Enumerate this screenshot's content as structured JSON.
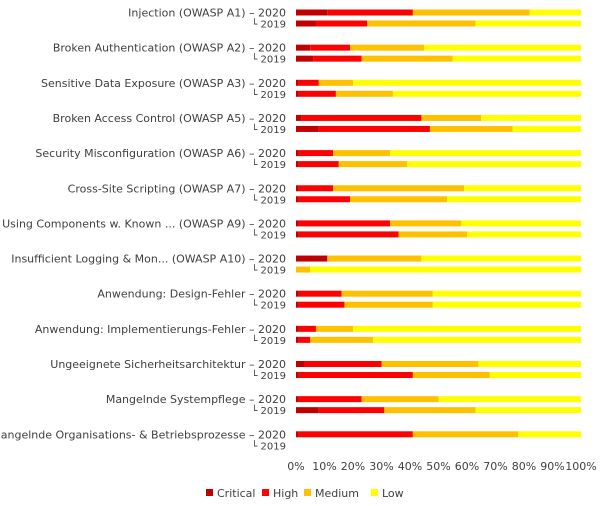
{
  "chart_data": {
    "type": "bar",
    "orientation": "horizontal",
    "stacked": "percent",
    "title": "",
    "xlabel": "",
    "ylabel": "",
    "xlim": [
      0,
      100
    ],
    "x_ticks": [
      "0%",
      "10%",
      "20%",
      "30%",
      "40%",
      "50%",
      "60%",
      "70%",
      "80%",
      "90%",
      "100%"
    ],
    "legend_position": "bottom",
    "grid": false,
    "series": [
      {
        "name": "Critical",
        "color": "#C00000"
      },
      {
        "name": "High",
        "color": "#FF0000"
      },
      {
        "name": "Medium",
        "color": "#FFC000"
      },
      {
        "name": "Low",
        "color": "#FFFF00"
      }
    ],
    "groups": [
      {
        "label": "Injection (OWASP A1)",
        "rows": [
          {
            "year": "2020",
            "values": [
              11,
              30,
              41,
              18
            ]
          },
          {
            "year": "2019",
            "values": [
              7,
              18,
              38,
              37
            ]
          }
        ]
      },
      {
        "label": "Broken Authentication (OWASP A2)",
        "rows": [
          {
            "year": "2020",
            "values": [
              5,
              14,
              26,
              55
            ]
          },
          {
            "year": "2019",
            "values": [
              6,
              17,
              32,
              45
            ]
          }
        ]
      },
      {
        "label": "Sensitive Data Exposure (OWASP A3)",
        "rows": [
          {
            "year": "2020",
            "values": [
              1,
              7,
              12,
              80
            ]
          },
          {
            "year": "2019",
            "values": [
              1,
              13,
              20,
              66
            ]
          }
        ]
      },
      {
        "label": "Broken Access Control (OWASP A5)",
        "rows": [
          {
            "year": "2020",
            "values": [
              2,
              42,
              21,
              35
            ]
          },
          {
            "year": "2019",
            "values": [
              8,
              39,
              29,
              24
            ]
          }
        ]
      },
      {
        "label": "Security Misconfiguration (OWASP A6)",
        "rows": [
          {
            "year": "2020",
            "values": [
              1,
              12,
              20,
              67
            ]
          },
          {
            "year": "2019",
            "values": [
              1,
              14,
              24,
              61
            ]
          }
        ]
      },
      {
        "label": "Cross-Site Scripting (OWASP A7)",
        "rows": [
          {
            "year": "2020",
            "values": [
              1,
              12,
              46,
              41
            ]
          },
          {
            "year": "2019",
            "values": [
              1,
              18,
              34,
              47
            ]
          }
        ]
      },
      {
        "label": "Using Components w. Known ... (OWASP A9)",
        "rows": [
          {
            "year": "2020",
            "values": [
              1,
              32,
              25,
              42
            ]
          },
          {
            "year": "2019",
            "values": [
              1,
              35,
              24,
              40
            ]
          }
        ]
      },
      {
        "label": "Insufficient Logging & Mon... (OWASP A10)",
        "rows": [
          {
            "year": "2020",
            "values": [
              11,
              0,
              33,
              56
            ]
          },
          {
            "year": "2019",
            "values": [
              0,
              0,
              5,
              95
            ]
          }
        ]
      },
      {
        "label": "Anwendung: Design-Fehler",
        "rows": [
          {
            "year": "2020",
            "values": [
              1,
              15,
              32,
              52
            ]
          },
          {
            "year": "2019",
            "values": [
              1,
              16,
              31,
              52
            ]
          }
        ]
      },
      {
        "label": "Anwendung: Implementierungs-Fehler",
        "rows": [
          {
            "year": "2020",
            "values": [
              1,
              6,
              13,
              80
            ]
          },
          {
            "year": "2019",
            "values": [
              1,
              4,
              22,
              73
            ]
          }
        ]
      },
      {
        "label": "Ungeeignete Sicherheitsarchitektur",
        "rows": [
          {
            "year": "2020",
            "values": [
              3,
              27,
              34,
              36
            ]
          },
          {
            "year": "2019",
            "values": [
              1,
              40,
              27,
              32
            ]
          }
        ]
      },
      {
        "label": "Mangelnde Systempflege",
        "rows": [
          {
            "year": "2020",
            "values": [
              1,
              22,
              27,
              50
            ]
          },
          {
            "year": "2019",
            "values": [
              8,
              23,
              32,
              37
            ]
          }
        ]
      },
      {
        "label": "Mangelnde Organisations- & Betriebsprozesse",
        "rows": [
          {
            "year": "2020",
            "values": [
              1,
              40,
              37,
              22
            ]
          },
          {
            "year": "2019",
            "values": [
              0,
              0,
              0,
              0
            ]
          }
        ]
      }
    ]
  }
}
